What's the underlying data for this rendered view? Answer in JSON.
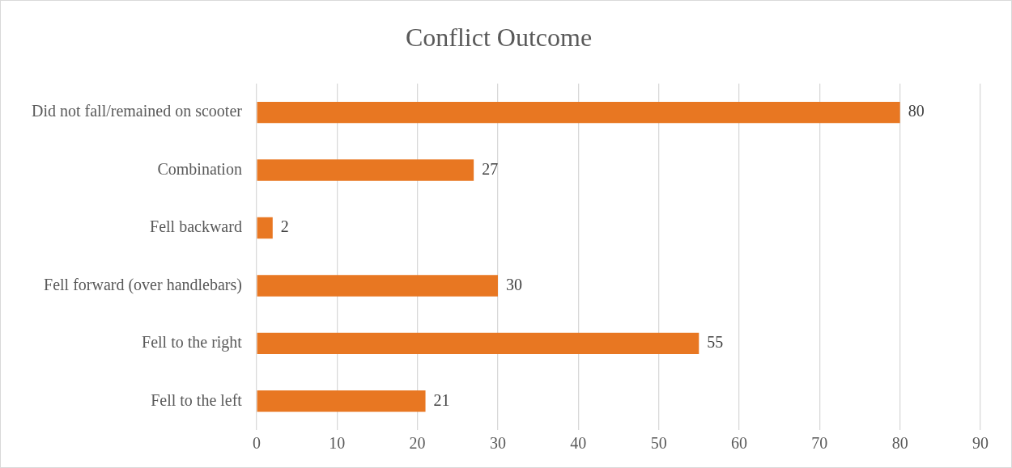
{
  "chart_data": {
    "type": "bar",
    "orientation": "horizontal",
    "title": "Conflict Outcome",
    "categories": [
      "Did not fall/remained on scooter",
      "Combination",
      "Fell backward",
      "Fell forward (over handlebars)",
      "Fell to the right",
      "Fell to the left"
    ],
    "values": [
      80,
      27,
      2,
      30,
      55,
      21
    ],
    "color": "#e87722",
    "xlim": [
      0,
      90
    ],
    "xticks": [
      0,
      10,
      20,
      30,
      40,
      50,
      60,
      70,
      80,
      90
    ],
    "grid": "x",
    "data_labels": true,
    "legend": false
  }
}
